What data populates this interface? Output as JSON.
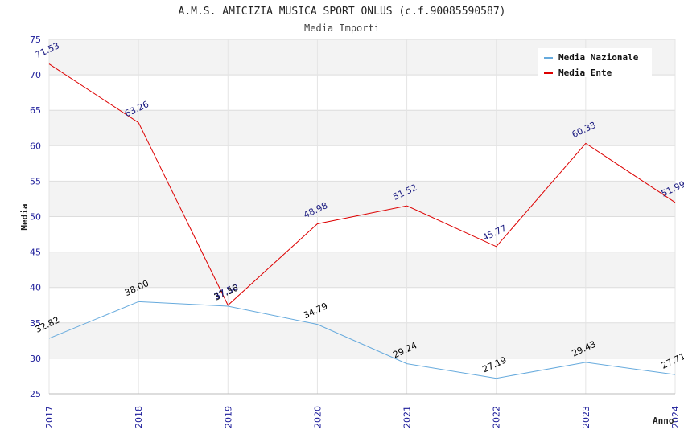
{
  "chart_data": {
    "type": "line",
    "title": "A.M.S. AMICIZIA MUSICA SPORT ONLUS (c.f.90085590587)",
    "subtitle": "Media Importi",
    "xlabel": "Anno",
    "ylabel": "Media",
    "categories": [
      "2017",
      "2018",
      "2019",
      "2020",
      "2021",
      "2022",
      "2023",
      "2024"
    ],
    "ylim": [
      25,
      75
    ],
    "yticks": [
      25,
      30,
      35,
      40,
      45,
      50,
      55,
      60,
      65,
      70,
      75
    ],
    "grid": true,
    "legend_position": "top-right",
    "series": [
      {
        "name": "Media Nazionale",
        "color": "#66aadd",
        "label_color": "#000000",
        "values": [
          32.82,
          38.0,
          37.36,
          34.79,
          29.24,
          27.19,
          29.43,
          27.71
        ],
        "labels": [
          "32.82",
          "38.00",
          "37.36",
          "34.79",
          "29.24",
          "27.19",
          "29.43",
          "27.71"
        ]
      },
      {
        "name": "Media Ente",
        "color": "#dd0000",
        "label_color": "#1a1a80",
        "values": [
          71.53,
          63.26,
          37.5,
          48.98,
          51.52,
          45.77,
          60.33,
          51.99
        ],
        "labels": [
          "71.53",
          "63.26",
          "37.50",
          "48.98",
          "51.52",
          "45.77",
          "60.33",
          "51.99"
        ]
      }
    ]
  }
}
